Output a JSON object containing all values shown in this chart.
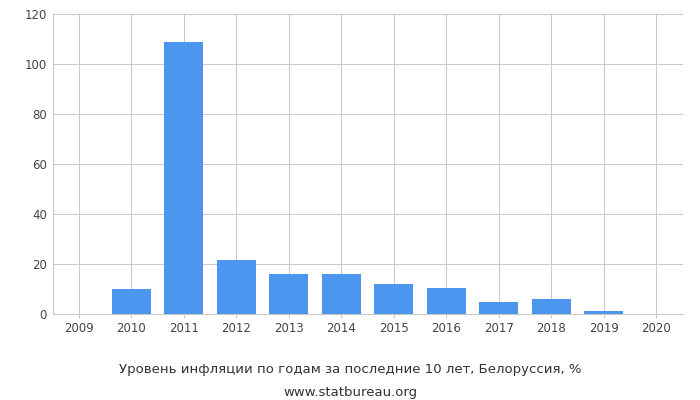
{
  "years": [
    2009,
    2010,
    2011,
    2012,
    2013,
    2014,
    2015,
    2016,
    2017,
    2018,
    2019,
    2020
  ],
  "bar_years": [
    2010,
    2011,
    2012,
    2013,
    2014,
    2015,
    2016,
    2017,
    2018,
    2019
  ],
  "values": [
    10.0,
    108.7,
    21.8,
    16.2,
    16.2,
    12.0,
    10.6,
    4.9,
    6.0,
    1.2
  ],
  "bar_color": "#4d96f0",
  "ylim": [
    0,
    120
  ],
  "yticks": [
    0,
    20,
    40,
    60,
    80,
    100,
    120
  ],
  "title": "Уровень инфляции по годам за последние 10 лет, Белоруссия, %",
  "subtitle": "www.statbureau.org",
  "title_fontsize": 9.5,
  "subtitle_fontsize": 9.5,
  "background_color": "#ffffff",
  "grid_color": "#c8c8c8",
  "tick_color": "#444444",
  "bar_width": 0.75
}
